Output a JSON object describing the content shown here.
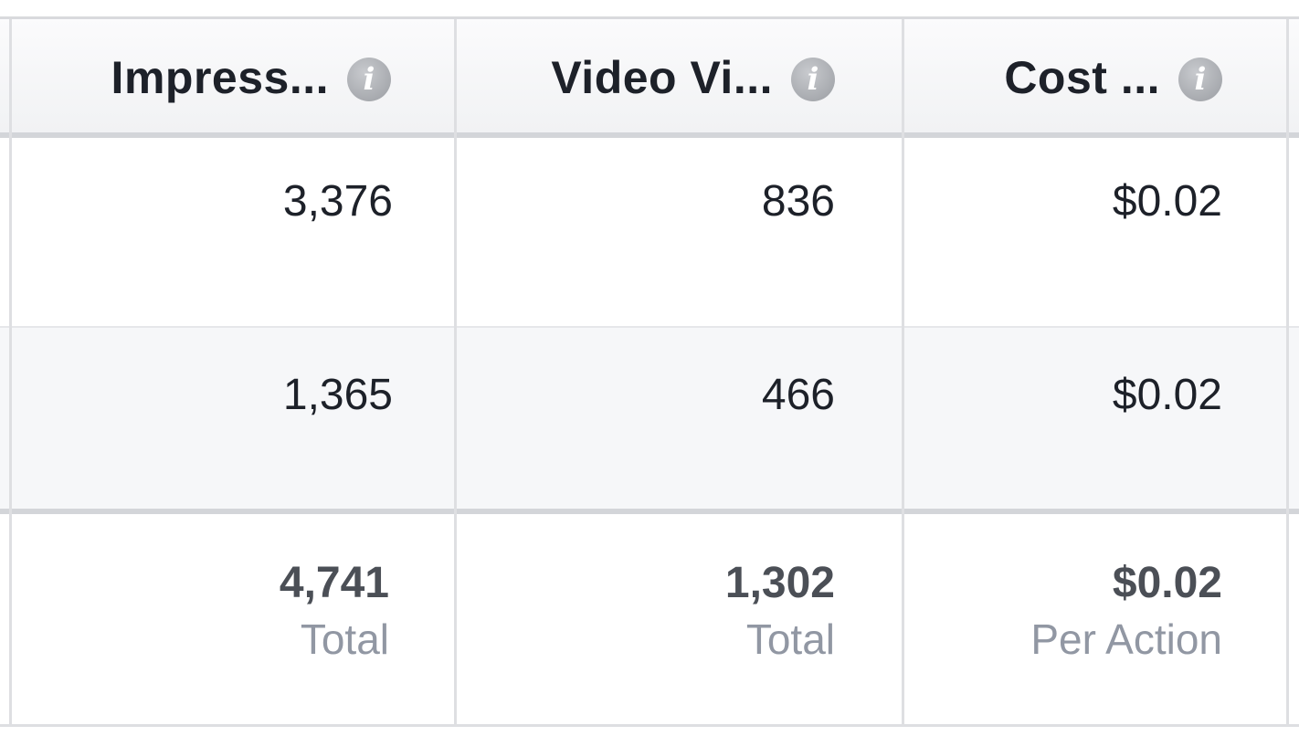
{
  "columns": [
    {
      "label": "Impress...",
      "icon": "info-icon"
    },
    {
      "label": "Video Vi...",
      "icon": "info-icon"
    },
    {
      "label": "Cost ...",
      "icon": "info-icon"
    }
  ],
  "info_glyph": "i",
  "rows": [
    {
      "impressions": "3,376",
      "video_views": "836",
      "cost": "$0.02"
    },
    {
      "impressions": "1,365",
      "video_views": "466",
      "cost": "$0.02"
    }
  ],
  "totals": {
    "impressions": {
      "value": "4,741",
      "label": "Total"
    },
    "video_views": {
      "value": "1,302",
      "label": "Total"
    },
    "cost": {
      "value": "$0.02",
      "label": "Per Action"
    }
  },
  "colors": {
    "header_text": "#1d2129",
    "total_label": "#9197a3",
    "info_icon": "#a9acb1",
    "border": "#dedfe2"
  }
}
